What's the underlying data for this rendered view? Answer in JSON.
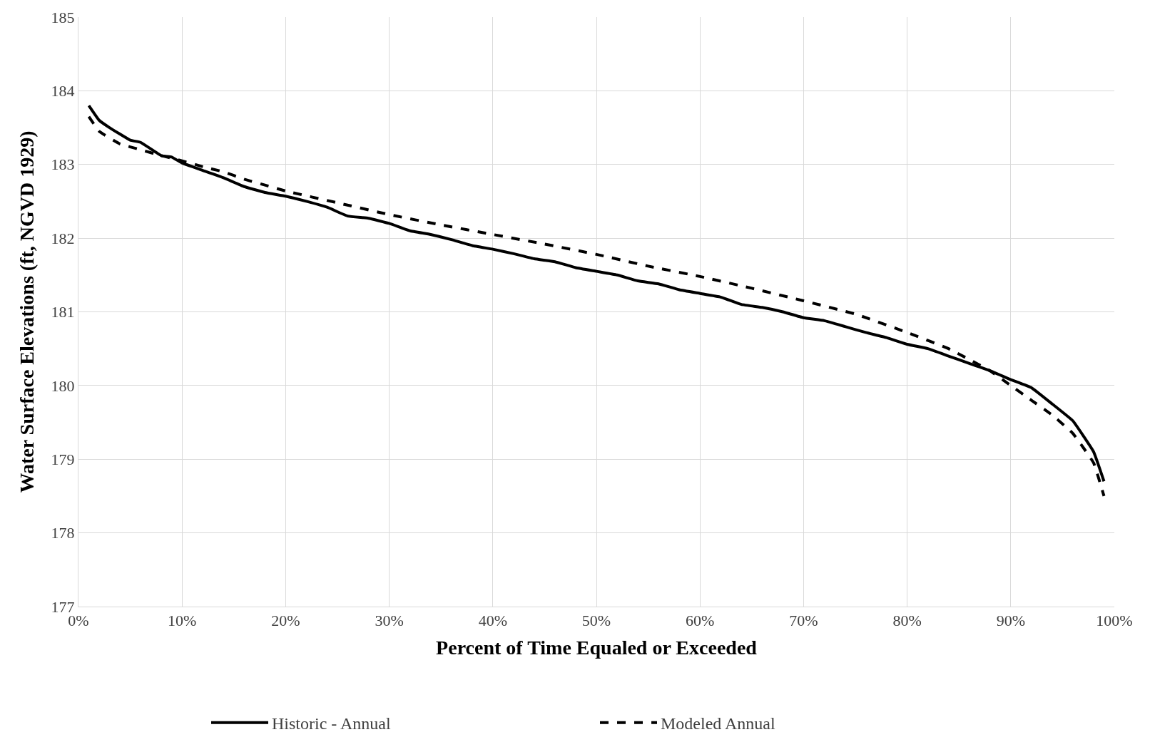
{
  "chart_data": {
    "type": "line",
    "xlabel": "Percent of Time Equaled or Exceeded",
    "ylabel": "Water Surface Elevations (ft, NGVD 1929)",
    "xlim": [
      0,
      100
    ],
    "xticks": [
      {
        "value": 0,
        "label": "0%"
      },
      {
        "value": 10,
        "label": "10%"
      },
      {
        "value": 20,
        "label": "20%"
      },
      {
        "value": 30,
        "label": "30%"
      },
      {
        "value": 40,
        "label": "40%"
      },
      {
        "value": 50,
        "label": "50%"
      },
      {
        "value": 60,
        "label": "60%"
      },
      {
        "value": 70,
        "label": "70%"
      },
      {
        "value": 80,
        "label": "80%"
      },
      {
        "value": 90,
        "label": "90%"
      },
      {
        "value": 100,
        "label": "100%"
      }
    ],
    "ylim": [
      177,
      185
    ],
    "yticks": [
      177,
      178,
      179,
      180,
      181,
      182,
      183,
      184,
      185
    ],
    "grid": true,
    "legend": "bottom",
    "marker": "none",
    "series": [
      {
        "name": "Historic - Annual",
        "color": "#000000",
        "line_style": "solid",
        "x": [
          1,
          2,
          3,
          5,
          6,
          8,
          9,
          10,
          12,
          14,
          16,
          18,
          20,
          22,
          24,
          26,
          28,
          30,
          32,
          34,
          36,
          38,
          40,
          42,
          44,
          46,
          48,
          50,
          52,
          54,
          56,
          58,
          60,
          62,
          64,
          66,
          68,
          70,
          72,
          74,
          76,
          78,
          80,
          82,
          84,
          86,
          88,
          90,
          92,
          94,
          96,
          98,
          99
        ],
        "values": [
          183.8,
          183.6,
          183.5,
          183.33,
          183.3,
          183.12,
          183.1,
          183.02,
          182.92,
          182.82,
          182.7,
          182.62,
          182.57,
          182.5,
          182.42,
          182.3,
          182.27,
          182.2,
          182.1,
          182.05,
          181.98,
          181.9,
          181.85,
          181.79,
          181.72,
          181.68,
          181.6,
          181.55,
          181.5,
          181.42,
          181.38,
          181.3,
          181.25,
          181.2,
          181.1,
          181.06,
          181.0,
          180.92,
          180.88,
          180.8,
          180.72,
          180.65,
          180.56,
          180.5,
          180.4,
          180.3,
          180.2,
          180.08,
          179.97,
          179.75,
          179.52,
          179.1,
          178.7
        ]
      },
      {
        "name": "Modeled Annual",
        "color": "#000000",
        "line_style": "dashed",
        "x": [
          1,
          2,
          4,
          6,
          8,
          10,
          12,
          14,
          16,
          18,
          20,
          25,
          30,
          35,
          40,
          45,
          50,
          55,
          60,
          65,
          70,
          75,
          80,
          84,
          88,
          90,
          92,
          94,
          96,
          98,
          99
        ],
        "values": [
          183.65,
          183.45,
          183.28,
          183.2,
          183.12,
          183.05,
          182.97,
          182.9,
          182.8,
          182.72,
          182.64,
          182.48,
          182.32,
          182.18,
          182.05,
          181.92,
          181.78,
          181.62,
          181.48,
          181.32,
          181.15,
          180.97,
          180.72,
          180.5,
          180.2,
          180.0,
          179.8,
          179.6,
          179.35,
          178.95,
          178.5
        ]
      }
    ]
  }
}
